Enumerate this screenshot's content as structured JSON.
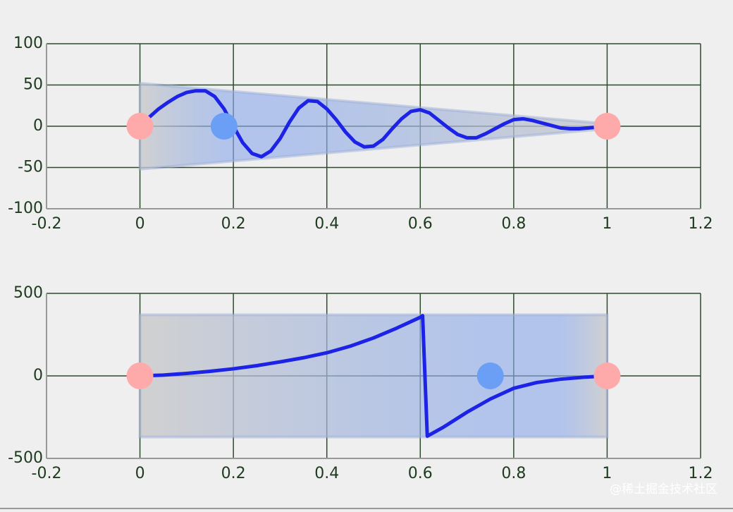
{
  "chart_data": [
    {
      "type": "line",
      "x": [
        0,
        0.02,
        0.04,
        0.06,
        0.08,
        0.1,
        0.12,
        0.14,
        0.16,
        0.18,
        0.2,
        0.22,
        0.24,
        0.26,
        0.28,
        0.3,
        0.32,
        0.34,
        0.36,
        0.38,
        0.4,
        0.42,
        0.44,
        0.46,
        0.48,
        0.5,
        0.52,
        0.54,
        0.56,
        0.58,
        0.6,
        0.62,
        0.64,
        0.66,
        0.68,
        0.7,
        0.72,
        0.74,
        0.76,
        0.78,
        0.8,
        0.82,
        0.84,
        0.86,
        0.88,
        0.9,
        0.92,
        0.94,
        0.96,
        0.98,
        1
      ],
      "values": [
        0,
        11,
        21,
        29,
        36,
        41,
        43,
        43,
        36,
        21,
        0,
        -20,
        -33,
        -37,
        -30,
        -15,
        5,
        22,
        31,
        30,
        21,
        8,
        -7,
        -19,
        -25,
        -24,
        -16,
        -3,
        9,
        18,
        20,
        16,
        7,
        -2,
        -10,
        -14,
        -14,
        -9,
        -3,
        3,
        8,
        9,
        7,
        4,
        1,
        -2,
        -3,
        -3,
        -2,
        -1,
        0
      ],
      "color": "#1c22e6",
      "band": {
        "x": [
          0,
          1
        ],
        "upper": [
          52,
          3
        ],
        "lower": [
          -52,
          -3
        ],
        "color": "#8aa8ea"
      },
      "markers": {
        "x": [
          0,
          0.18,
          1
        ],
        "y": [
          0,
          0,
          0
        ],
        "colors": [
          "#ffaaaa",
          "#6b9ef5",
          "#ffaaaa"
        ]
      },
      "xlim": [
        -0.2,
        1.2
      ],
      "xticks": [
        -0.2,
        0,
        0.2,
        0.4,
        0.6,
        0.8,
        1,
        1.2
      ],
      "ylim": [
        -100,
        100
      ],
      "yticks": [
        100,
        50,
        0,
        -50,
        -100
      ],
      "grid": true
    },
    {
      "type": "line",
      "x": [
        0,
        0.05,
        0.1,
        0.15,
        0.2,
        0.25,
        0.3,
        0.35,
        0.4,
        0.45,
        0.5,
        0.55,
        0.6,
        0.605,
        0.615,
        0.65,
        0.7,
        0.75,
        0.8,
        0.85,
        0.9,
        0.95,
        1
      ],
      "values": [
        0,
        5,
        15,
        28,
        43,
        62,
        85,
        110,
        140,
        180,
        230,
        290,
        355,
        365,
        -365,
        -310,
        -220,
        -140,
        -75,
        -40,
        -20,
        -8,
        0
      ],
      "color": "#1c22e6",
      "band": {
        "x": [
          0,
          1
        ],
        "upper": [
          370,
          370
        ],
        "lower": [
          -370,
          -370
        ],
        "color": "#8aa8ea"
      },
      "markers": {
        "x": [
          0,
          0.75,
          1
        ],
        "y": [
          0,
          0,
          0
        ],
        "colors": [
          "#ffaaaa",
          "#6b9ef5",
          "#ffaaaa"
        ]
      },
      "xlim": [
        -0.2,
        1.2
      ],
      "xticks": [
        -0.2,
        0,
        0.2,
        0.4,
        0.6,
        0.8,
        1,
        1.2
      ],
      "ylim": [
        -500,
        500
      ],
      "yticks": [
        500,
        0,
        -500
      ],
      "grid": true
    }
  ],
  "watermark": "@稀土掘金技术社区"
}
